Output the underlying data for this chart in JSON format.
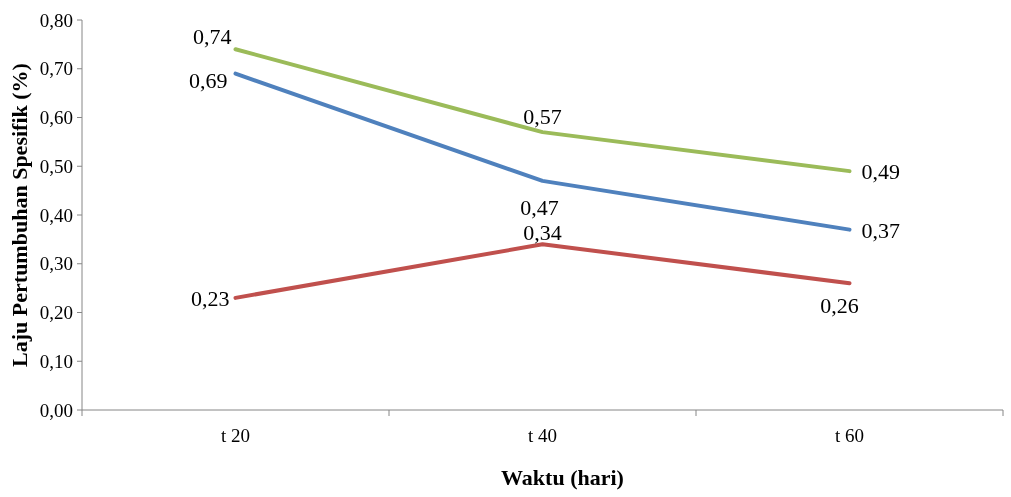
{
  "chart_data": {
    "type": "line",
    "xlabel": "Waktu (hari)",
    "ylabel": "Laju Pertumbuhan Spesifik (%)",
    "categories": [
      "t 20",
      "t 40",
      "t 60"
    ],
    "ylim": [
      0,
      0.8
    ],
    "yticks": [
      {
        "value": 0,
        "label": "0,00"
      },
      {
        "value": 0.1,
        "label": "0,10"
      },
      {
        "value": 0.2,
        "label": "0,20"
      },
      {
        "value": 0.3,
        "label": "0,30"
      },
      {
        "value": 0.4,
        "label": "0,40"
      },
      {
        "value": 0.5,
        "label": "0,50"
      },
      {
        "value": 0.6,
        "label": "0,60"
      },
      {
        "value": 0.7,
        "label": "0,70"
      },
      {
        "value": 0.8,
        "label": "0,80"
      }
    ],
    "grid": false,
    "marker": "none",
    "line_style": "solid",
    "series": [
      {
        "color": "#9bbb59",
        "values": [
          0.74,
          0.57,
          0.49
        ],
        "value_labels": [
          "0,74",
          "0,57",
          "0,49"
        ]
      },
      {
        "color": "#4f81bd",
        "values": [
          0.69,
          0.47,
          0.37
        ],
        "value_labels": [
          "0,69",
          "0,47",
          "0,37"
        ]
      },
      {
        "color": "#c0504d",
        "values": [
          0.23,
          0.34,
          0.26
        ],
        "value_labels": [
          "0,23",
          "0,34",
          "0,26"
        ]
      }
    ]
  }
}
